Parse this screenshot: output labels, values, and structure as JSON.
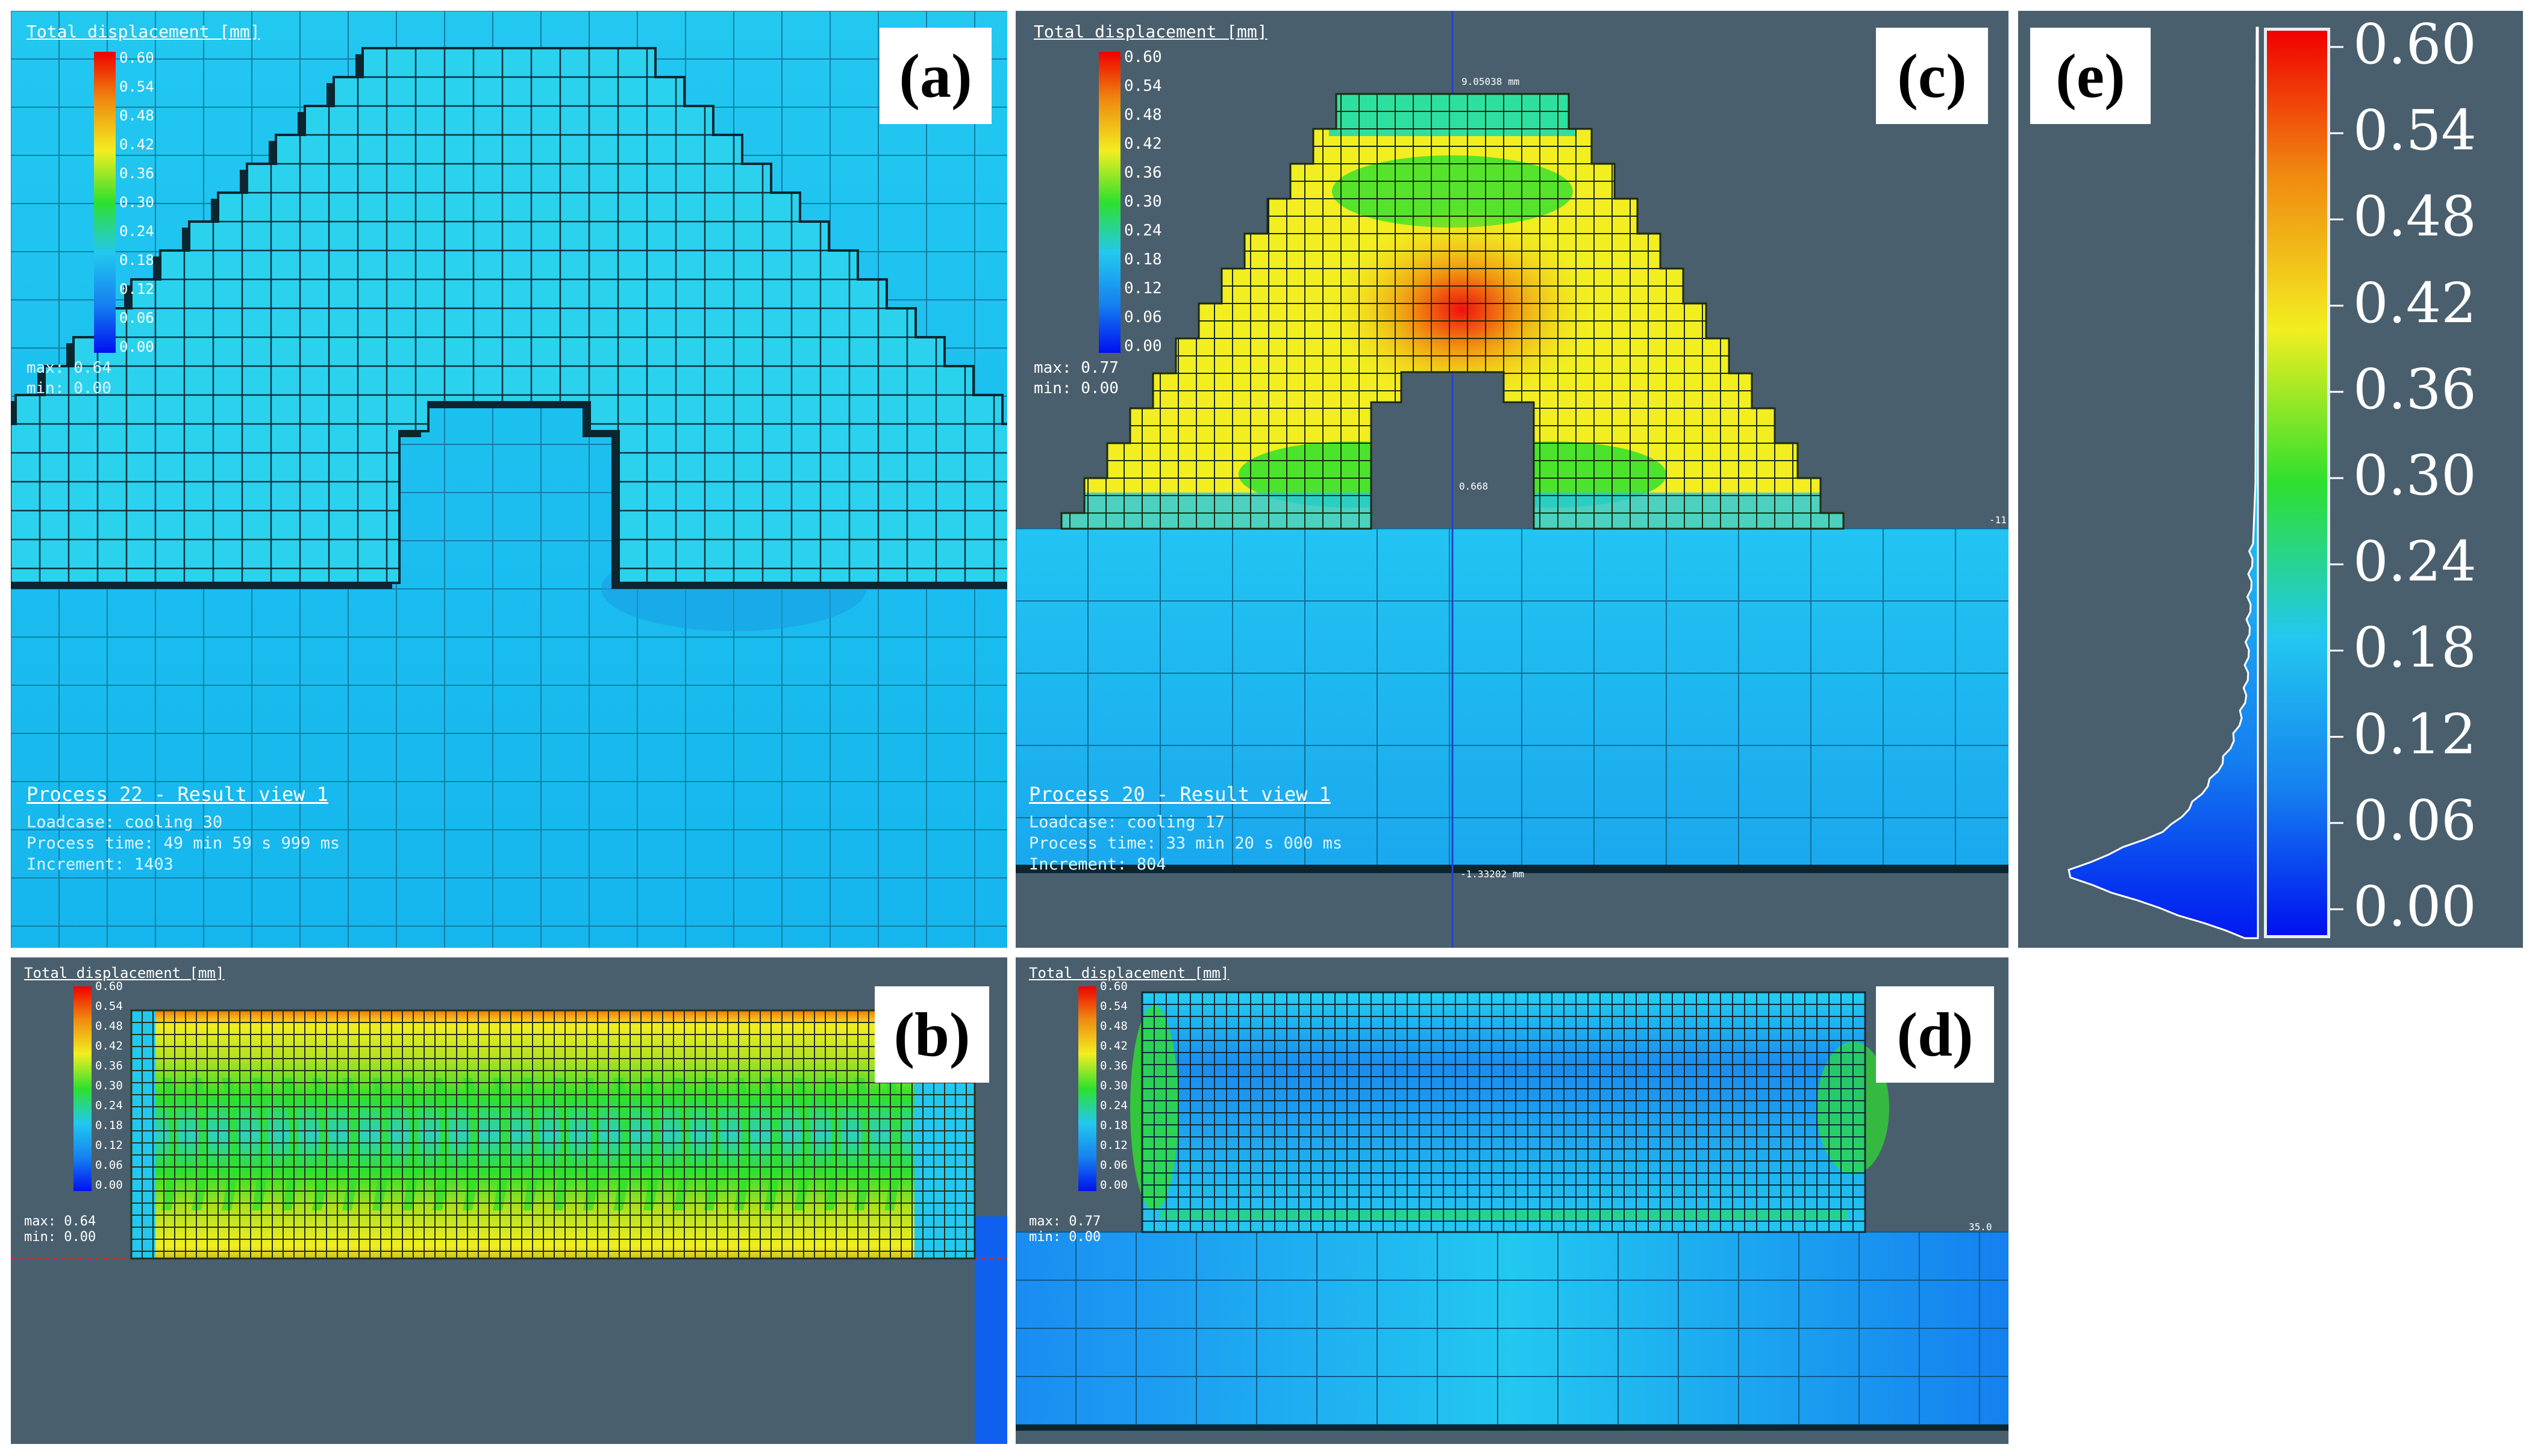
{
  "colors": {
    "background": "#4a5f6d",
    "base_cyan": "#22c8f0",
    "low_blue": "#1580f0",
    "yellow": "#f2ee20",
    "green": "#2ee02e",
    "orange": "#f08a10",
    "red": "#f01010",
    "grid_line": "#0a2a38"
  },
  "colorbar_ticks": [
    "0.60",
    "0.54",
    "0.48",
    "0.42",
    "0.36",
    "0.30",
    "0.24",
    "0.18",
    "0.12",
    "0.06",
    "0.00"
  ],
  "panels": {
    "a": {
      "label": "(a)",
      "title": "Total displacement [mm]",
      "max": "max: 0.64",
      "min": "min: 0.00",
      "process": "Process 22 - Result view 1",
      "loadcase": "Loadcase: cooling 30",
      "time": "Process time: 49 min 59 s 999 ms",
      "increment": "Increment: 1403"
    },
    "b": {
      "label": "(b)",
      "title": "Total displacement [mm]",
      "max": "max: 0.64",
      "min": "min: 0.00"
    },
    "c": {
      "label": "(c)",
      "title": "Total displacement [mm]",
      "max": "max: 0.77",
      "min": "min: 0.00",
      "process": "Process 20 - Result view 1",
      "loadcase": "Loadcase: cooling 17",
      "time": "Process time: 33 min 20 s 000 ms",
      "increment": "Increment: 804",
      "dim_top": "9.05038 mm",
      "dim_mid": "0.668",
      "dim_bottom": "-1.33202 mm",
      "dim_right": "-11"
    },
    "d": {
      "label": "(d)",
      "title": "Total displacement [mm]",
      "max": "max: 0.77",
      "min": "min: 0.00",
      "dim_right": "35.0"
    },
    "e": {
      "label": "(e)"
    }
  }
}
